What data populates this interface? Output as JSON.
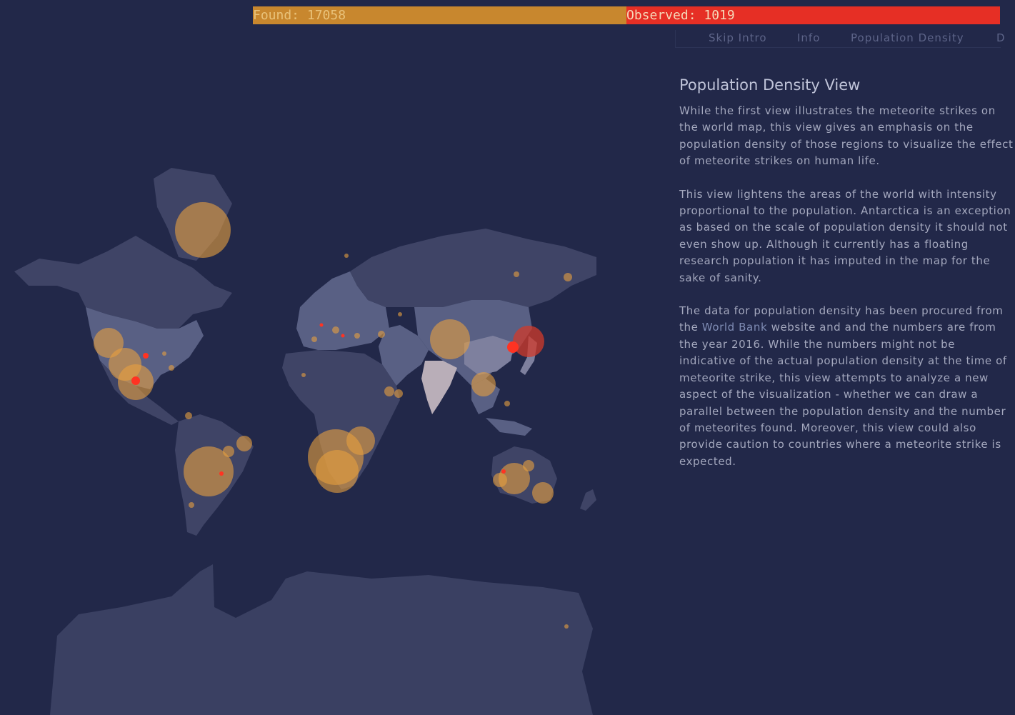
{
  "counter": {
    "found_label": "Found: 17058",
    "observed_label": "Observed: 1019",
    "found_count": 17058,
    "observed_count": 1019,
    "found_color": "#c8872e",
    "observed_color": "#e62f25"
  },
  "nav": {
    "items": [
      {
        "label": "Skip Intro"
      },
      {
        "label": "Info"
      },
      {
        "label": "Population Density"
      },
      {
        "label": "D"
      }
    ]
  },
  "panel": {
    "title": "Population Density View",
    "para1": "While the first view illustrates the meteorite strikes on the world map, this view gives an emphasis on the population density of those regions to visualize the effect of meteorite strikes on human life.",
    "para2": "This view lightens the areas of the world with intensity proportional to the population. Antarctica is an exception as based on the scale of population density it should not even show up. Although it currently has a floating research population it has imputed in the map for the sake of sanity.",
    "para3_before": "The data for population density has been procured from the ",
    "para3_link": "World Bank",
    "para3_after": " website and and the numbers are from the year 2016. While the numbers might not be indicative of the actual population density at the time of meteorite strike, this view attempts to analyze a new aspect of the visualization - whether we can draw a parallel between the population density and the number of meteorites found. Moreover, this view could also provide caution to countries where a meteorite strike is expected."
  },
  "map": {
    "background": "#222849",
    "found_marker_color": "#e8a040",
    "observed_marker_color": "#ff3322",
    "land_colors": [
      "#3f4466",
      "#596084",
      "#7e809e",
      "#b9aeb8"
    ]
  }
}
